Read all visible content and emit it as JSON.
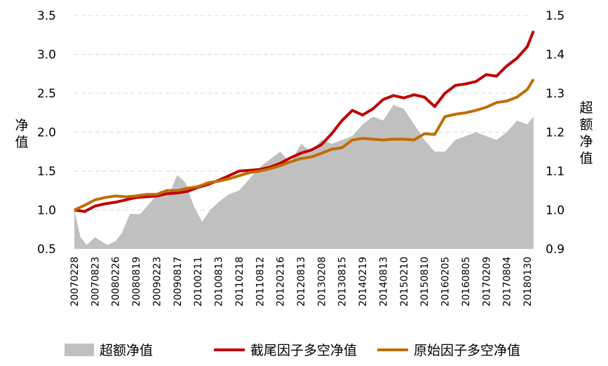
{
  "chart_data": {
    "type": "line",
    "left_axis": {
      "label": "净值",
      "ticks": [
        "0.5",
        "1.0",
        "1.5",
        "2.0",
        "2.5",
        "3.0",
        "3.5"
      ],
      "ylim": [
        0.5,
        3.5
      ]
    },
    "right_axis": {
      "label": "超额净值",
      "ticks": [
        "0.9",
        "1.0",
        "1.1",
        "1.2",
        "1.3",
        "1.4",
        "1.5"
      ],
      "ylim": [
        0.9,
        1.5
      ]
    },
    "x_ticks": [
      "20070228",
      "20070823",
      "20080226",
      "20080819",
      "20090223",
      "20090817",
      "20100211",
      "20100813",
      "20110218",
      "20110812",
      "20120216",
      "20120813",
      "20130208",
      "20130815",
      "20140219",
      "20140813",
      "20150210",
      "20150810",
      "20160205",
      "20160805",
      "20170209",
      "20170804",
      "20180130"
    ],
    "grid": true,
    "legend_position": "bottom",
    "series": [
      {
        "name": "超额净值",
        "kind": "area",
        "axis": "right",
        "color": "#c0c0c0",
        "x": [
          0,
          0.3,
          0.6,
          1,
          1.3,
          1.6,
          2,
          2.3,
          2.7,
          3.2,
          3.7,
          4.2,
          4.6,
          5,
          5.4,
          5.8,
          6.2,
          6.6,
          7,
          7.5,
          8,
          8.5,
          9,
          9.5,
          10,
          10.5,
          11,
          11.5,
          12,
          12.5,
          13,
          13.5,
          14,
          14.5,
          15,
          15.5,
          16,
          16.5,
          17,
          17.5,
          18,
          18.5,
          19,
          19.5,
          20,
          20.5,
          21,
          21.5,
          22,
          22.3
        ],
        "values": [
          1.0,
          0.93,
          0.91,
          0.93,
          0.92,
          0.91,
          0.92,
          0.94,
          0.99,
          0.99,
          1.02,
          1.05,
          1.04,
          1.09,
          1.07,
          1.01,
          0.97,
          1.0,
          1.02,
          1.04,
          1.05,
          1.08,
          1.11,
          1.13,
          1.15,
          1.12,
          1.17,
          1.15,
          1.18,
          1.17,
          1.18,
          1.19,
          1.22,
          1.24,
          1.23,
          1.27,
          1.26,
          1.22,
          1.18,
          1.15,
          1.15,
          1.18,
          1.19,
          1.2,
          1.19,
          1.18,
          1.2,
          1.23,
          1.22,
          1.24
        ]
      },
      {
        "name": "截尾因子多空净值",
        "kind": "line",
        "axis": "left",
        "color": "#c00000",
        "x": [
          0,
          0.5,
          1,
          1.5,
          2,
          2.5,
          3,
          3.5,
          4,
          4.5,
          5,
          5.5,
          6,
          6.5,
          7,
          7.5,
          8,
          8.5,
          9,
          9.5,
          10,
          10.5,
          11,
          11.5,
          12,
          12.5,
          13,
          13.5,
          14,
          14.5,
          15,
          15.5,
          16,
          16.5,
          17,
          17.5,
          18,
          18.5,
          19,
          19.5,
          20,
          20.5,
          21,
          21.5,
          22,
          22.3
        ],
        "values": [
          1.0,
          0.98,
          1.05,
          1.08,
          1.1,
          1.13,
          1.16,
          1.17,
          1.18,
          1.21,
          1.22,
          1.24,
          1.29,
          1.33,
          1.38,
          1.44,
          1.5,
          1.51,
          1.52,
          1.55,
          1.6,
          1.67,
          1.73,
          1.77,
          1.84,
          1.98,
          2.15,
          2.28,
          2.22,
          2.3,
          2.42,
          2.47,
          2.44,
          2.48,
          2.45,
          2.33,
          2.5,
          2.6,
          2.62,
          2.65,
          2.74,
          2.72,
          2.85,
          2.95,
          3.1,
          3.3
        ]
      },
      {
        "name": "原始因子多空净值",
        "kind": "line",
        "axis": "left",
        "color": "#bf6d00",
        "x": [
          0,
          0.5,
          1,
          1.5,
          2,
          2.5,
          3,
          3.5,
          4,
          4.5,
          5,
          5.5,
          6,
          6.5,
          7,
          7.5,
          8,
          8.5,
          9,
          9.5,
          10,
          10.5,
          11,
          11.5,
          12,
          12.5,
          13,
          13.5,
          14,
          14.5,
          15,
          15.5,
          16,
          16.5,
          17,
          17.5,
          18,
          18.5,
          19,
          19.5,
          20,
          20.5,
          21,
          21.5,
          22,
          22.3
        ],
        "values": [
          1.0,
          1.06,
          1.13,
          1.16,
          1.18,
          1.17,
          1.18,
          1.2,
          1.2,
          1.25,
          1.25,
          1.28,
          1.3,
          1.35,
          1.37,
          1.4,
          1.44,
          1.48,
          1.5,
          1.53,
          1.57,
          1.62,
          1.66,
          1.68,
          1.73,
          1.78,
          1.8,
          1.9,
          1.92,
          1.91,
          1.9,
          1.91,
          1.91,
          1.9,
          1.98,
          1.97,
          2.2,
          2.23,
          2.25,
          2.28,
          2.32,
          2.38,
          2.4,
          2.45,
          2.55,
          2.68
        ]
      }
    ]
  }
}
